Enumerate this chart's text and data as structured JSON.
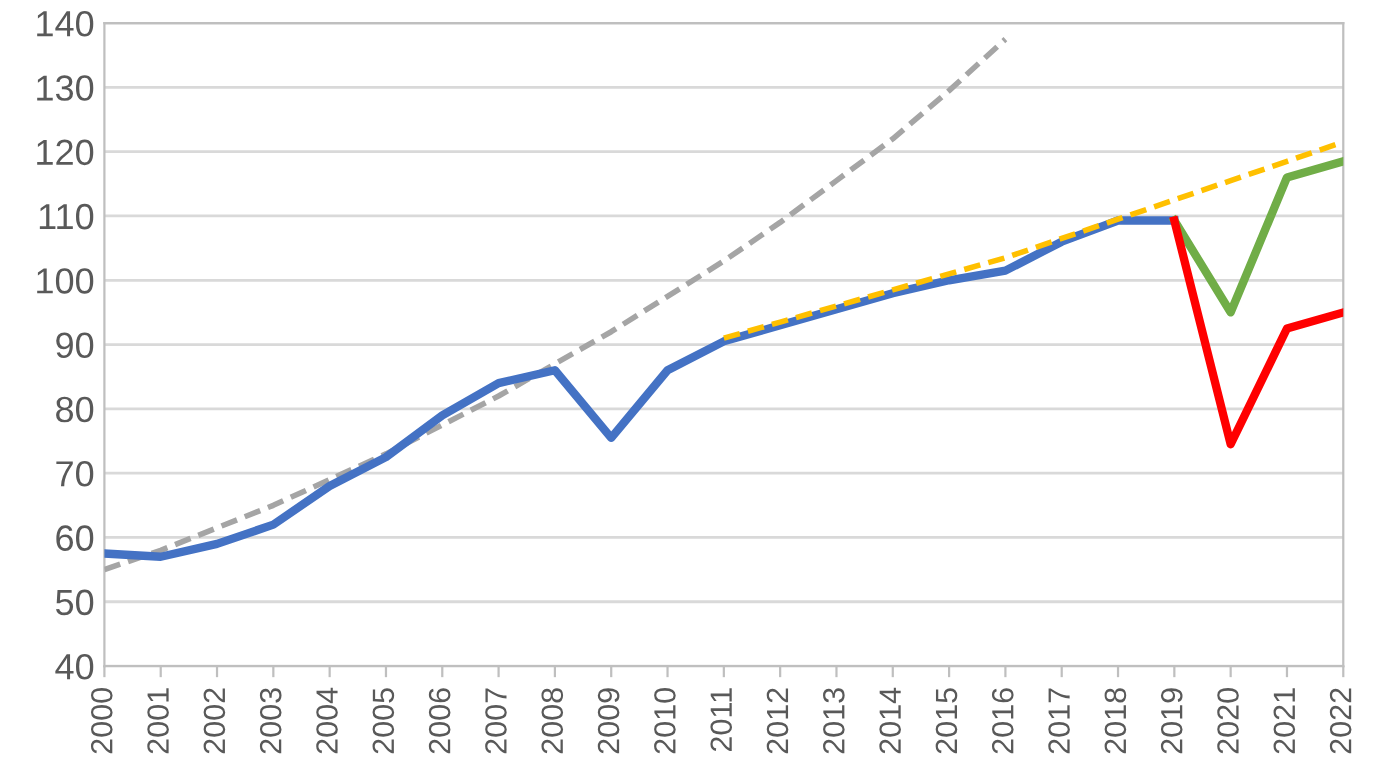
{
  "chart_data": {
    "type": "line",
    "categories": [
      "2000",
      "2001",
      "2002",
      "2003",
      "2004",
      "2005",
      "2006",
      "2007",
      "2008",
      "2009",
      "2010",
      "2011",
      "2012",
      "2013",
      "2014",
      "2015",
      "2016",
      "2017",
      "2018",
      "2019",
      "2020",
      "2021",
      "2022"
    ],
    "series": [
      {
        "color": "#a5a5a5",
        "line_style": "dashed",
        "values": [
          55,
          58,
          61.5,
          65,
          69,
          73,
          77.5,
          82,
          87,
          92,
          97.5,
          103,
          109,
          115.5,
          122,
          129.5,
          137.5,
          null,
          null,
          null,
          null,
          null,
          null
        ]
      },
      {
        "color": "#4472c4",
        "values": [
          57.5,
          57,
          59,
          62,
          68,
          72.5,
          79,
          84,
          86,
          75.5,
          86,
          90.5,
          93,
          95.5,
          98,
          100,
          101.5,
          106,
          109.3,
          109.3,
          null,
          null,
          null
        ]
      },
      {
        "color": "#70ad47",
        "values": [
          null,
          null,
          null,
          null,
          null,
          null,
          null,
          null,
          null,
          null,
          null,
          null,
          null,
          null,
          null,
          null,
          null,
          null,
          null,
          109.3,
          95,
          116,
          118.5
        ]
      },
      {
        "color": "#ff0000",
        "values": [
          null,
          null,
          null,
          null,
          null,
          null,
          null,
          null,
          null,
          null,
          null,
          null,
          null,
          null,
          null,
          null,
          null,
          null,
          null,
          109.3,
          74.5,
          92.5,
          95
        ]
      },
      {
        "color": "#ffc000",
        "line_style": "dashed",
        "values": [
          null,
          null,
          null,
          null,
          null,
          null,
          null,
          null,
          null,
          null,
          null,
          91,
          93.5,
          96,
          98.5,
          101,
          103.5,
          106.5,
          109.5,
          112.5,
          115.5,
          118.5,
          121.5
        ]
      }
    ],
    "ylim": [
      40,
      140
    ],
    "yticks": [
      40,
      50,
      60,
      70,
      80,
      90,
      100,
      110,
      120,
      130,
      140
    ],
    "grid": "y",
    "marker": "none",
    "legend": false
  }
}
